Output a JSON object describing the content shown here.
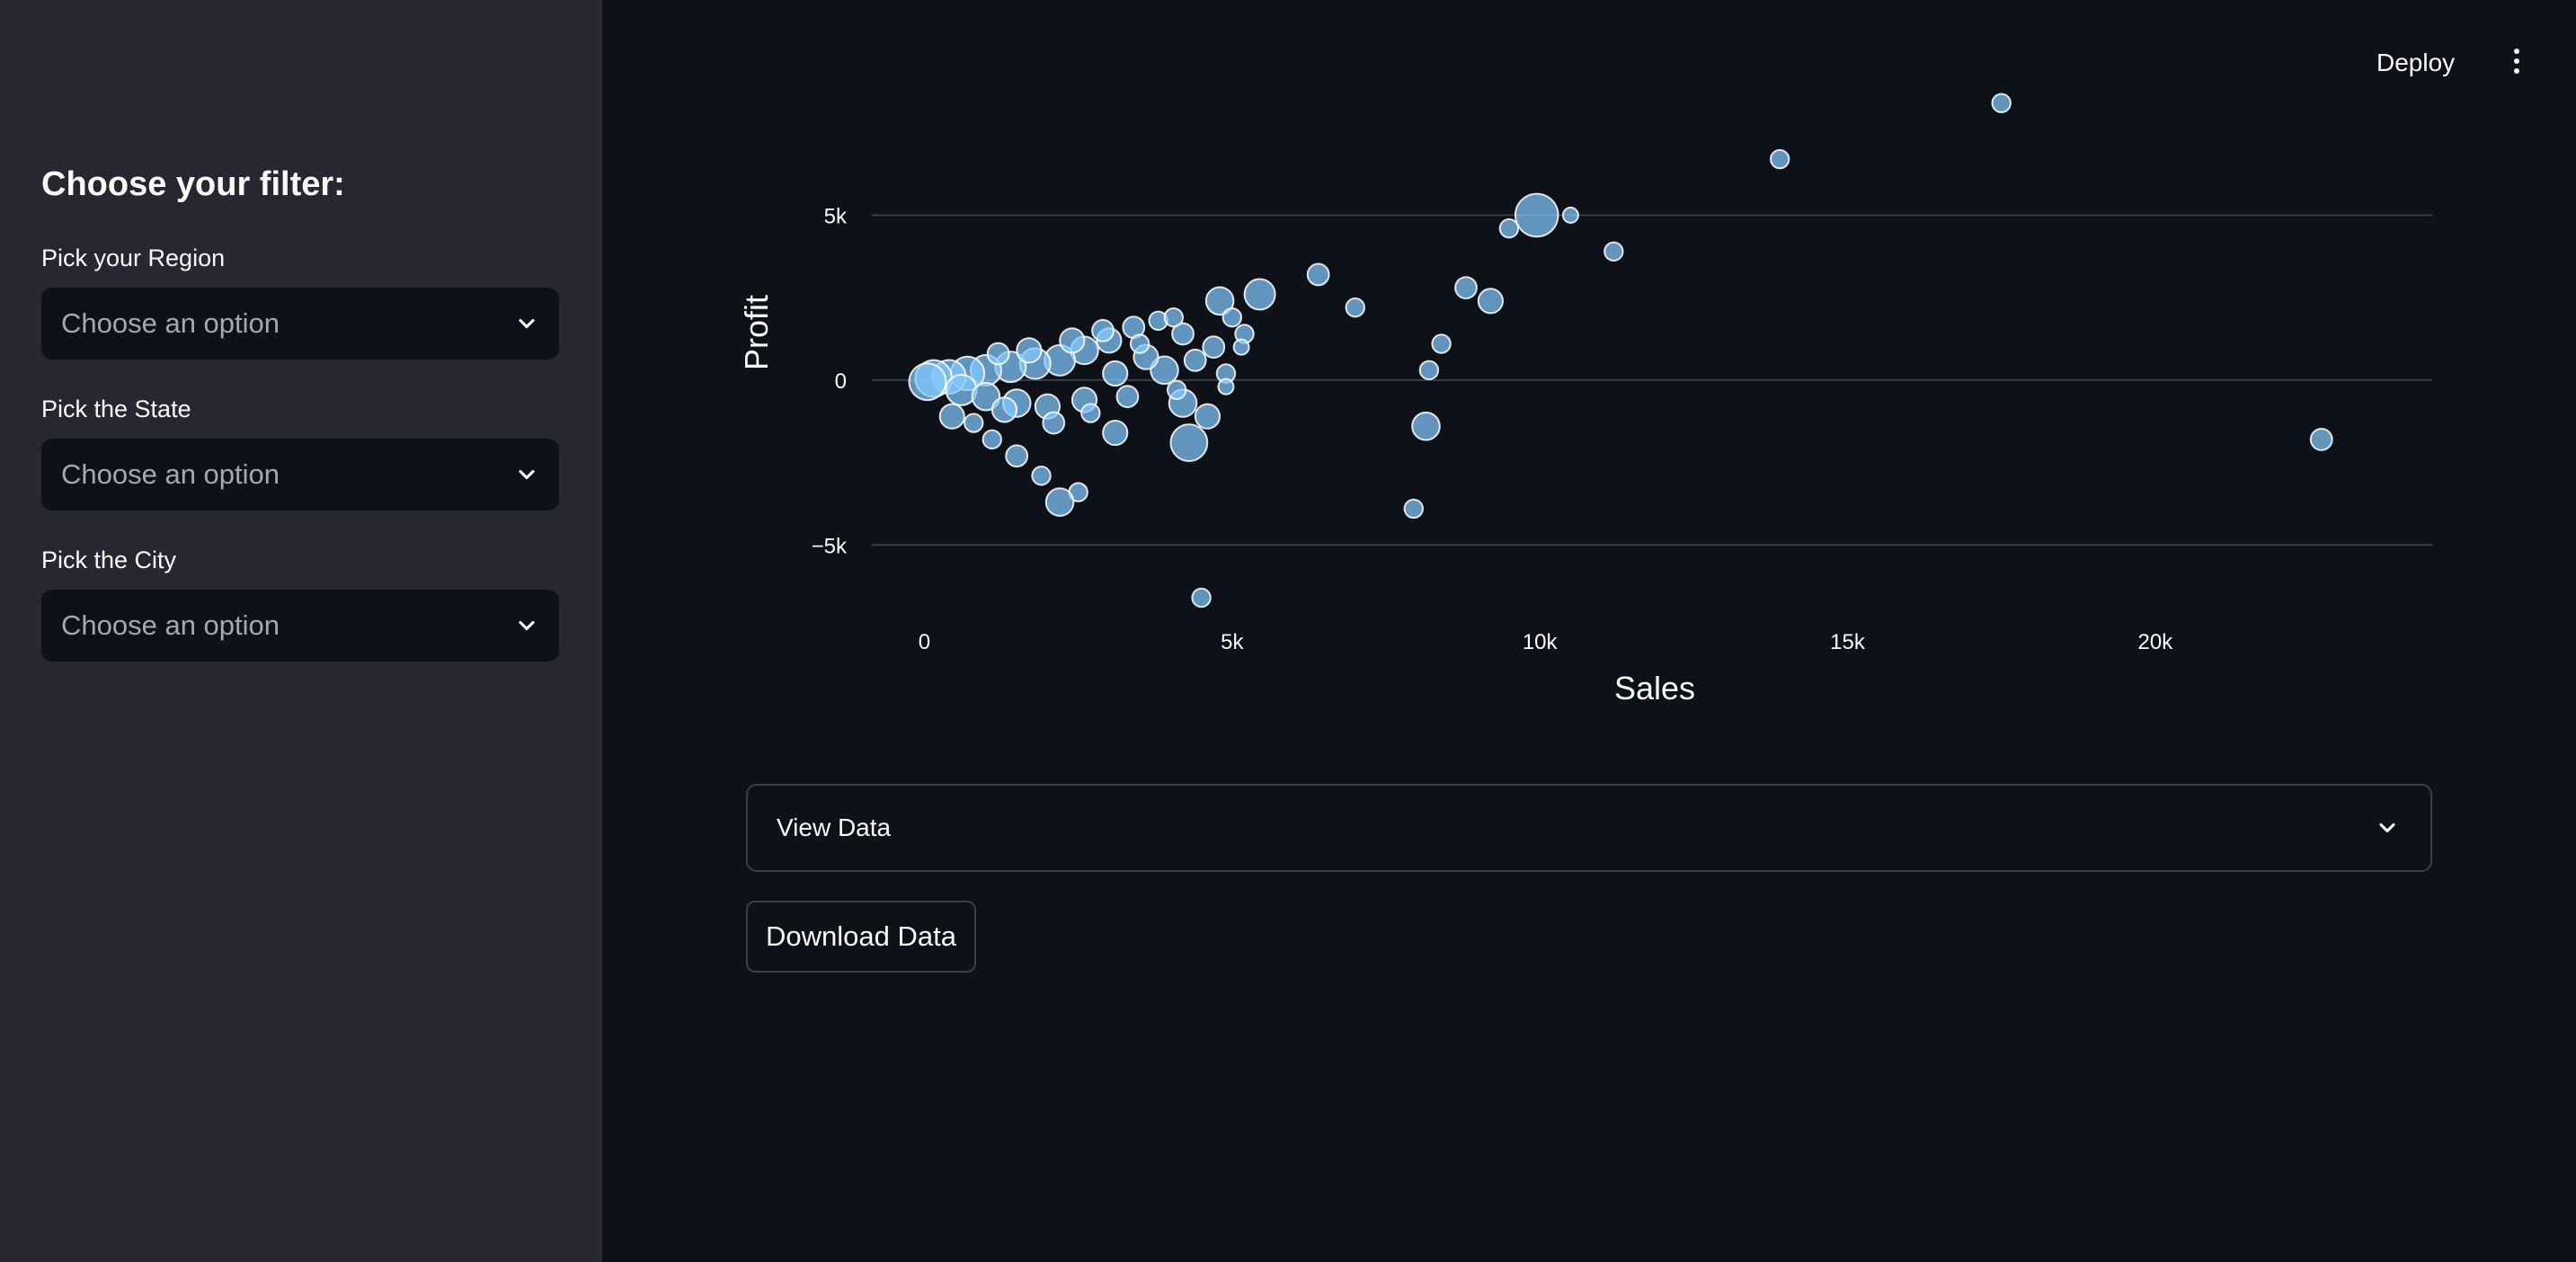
{
  "sidebar": {
    "title": "Choose your filter:",
    "filters": [
      {
        "label": "Pick your Region",
        "placeholder": "Choose an option"
      },
      {
        "label": "Pick the State",
        "placeholder": "Choose an option"
      },
      {
        "label": "Pick the City",
        "placeholder": "Choose an option"
      }
    ]
  },
  "header": {
    "deploy_label": "Deploy",
    "menu_icon": "kebab-menu-icon"
  },
  "chart_data": {
    "type": "scatter",
    "title": "",
    "xlabel": "Sales",
    "ylabel": "Profit",
    "xlim": [
      -1000,
      24500
    ],
    "ylim": [
      -7500,
      8800
    ],
    "x_ticks": [
      {
        "value": 0,
        "label": "0"
      },
      {
        "value": 5000,
        "label": "5k"
      },
      {
        "value": 10000,
        "label": "10k"
      },
      {
        "value": 15000,
        "label": "15k"
      },
      {
        "value": 20000,
        "label": "20k"
      }
    ],
    "y_ticks": [
      {
        "value": 5000,
        "label": "5k"
      },
      {
        "value": 0,
        "label": "0"
      },
      {
        "value": -5000,
        "label": "−5k"
      }
    ],
    "grid": "horizontal",
    "marker_color": "#83c9ff",
    "points": [
      {
        "x": 17500,
        "y": 8400,
        "size": 3
      },
      {
        "x": 13900,
        "y": 6700,
        "size": 3
      },
      {
        "x": 9950,
        "y": 5000,
        "size": 7
      },
      {
        "x": 10500,
        "y": 5000,
        "size": 2.5
      },
      {
        "x": 9500,
        "y": 4600,
        "size": 3
      },
      {
        "x": 11200,
        "y": 3900,
        "size": 3
      },
      {
        "x": 6400,
        "y": 3200,
        "size": 3.5
      },
      {
        "x": 8800,
        "y": 2800,
        "size": 3.5
      },
      {
        "x": 9200,
        "y": 2400,
        "size": 4
      },
      {
        "x": 7000,
        "y": 2200,
        "size": 3
      },
      {
        "x": 5450,
        "y": 2600,
        "size": 5
      },
      {
        "x": 4800,
        "y": 2400,
        "size": 4.5
      },
      {
        "x": 5000,
        "y": 1900,
        "size": 3
      },
      {
        "x": 5200,
        "y": 1400,
        "size": 3
      },
      {
        "x": 8400,
        "y": 1100,
        "size": 3
      },
      {
        "x": 8200,
        "y": 300,
        "size": 3
      },
      {
        "x": 8150,
        "y": -1400,
        "size": 4.5
      },
      {
        "x": 7950,
        "y": -3900,
        "size": 3
      },
      {
        "x": 22700,
        "y": -1800,
        "size": 3.5
      },
      {
        "x": 4500,
        "y": -6600,
        "size": 3
      },
      {
        "x": 4300,
        "y": -1900,
        "size": 6
      },
      {
        "x": 4600,
        "y": -1100,
        "size": 4
      },
      {
        "x": 4200,
        "y": -700,
        "size": 4.5
      },
      {
        "x": 3100,
        "y": -1600,
        "size": 4
      },
      {
        "x": 2500,
        "y": -3400,
        "size": 3
      },
      {
        "x": 2200,
        "y": -3700,
        "size": 4.5
      },
      {
        "x": 1900,
        "y": -2900,
        "size": 3
      },
      {
        "x": 1500,
        "y": -2300,
        "size": 3.5
      },
      {
        "x": 1100,
        "y": -1800,
        "size": 3
      },
      {
        "x": 800,
        "y": -1300,
        "size": 3
      },
      {
        "x": 450,
        "y": -1100,
        "size": 4
      },
      {
        "x": 4900,
        "y": 200,
        "size": 3
      },
      {
        "x": 4700,
        "y": 1000,
        "size": 3.5
      },
      {
        "x": 4200,
        "y": 1400,
        "size": 3.5
      },
      {
        "x": 3800,
        "y": 1800,
        "size": 3
      },
      {
        "x": 3400,
        "y": 1600,
        "size": 3.5
      },
      {
        "x": 3000,
        "y": 1200,
        "size": 4
      },
      {
        "x": 2600,
        "y": 900,
        "size": 4.5
      },
      {
        "x": 2200,
        "y": 600,
        "size": 5
      },
      {
        "x": 1800,
        "y": 500,
        "size": 5
      },
      {
        "x": 1400,
        "y": 400,
        "size": 5
      },
      {
        "x": 1000,
        "y": 300,
        "size": 5
      },
      {
        "x": 700,
        "y": 200,
        "size": 5.5
      },
      {
        "x": 400,
        "y": 100,
        "size": 5.5
      },
      {
        "x": 150,
        "y": 50,
        "size": 6
      },
      {
        "x": 50,
        "y": -50,
        "size": 6
      },
      {
        "x": 600,
        "y": -300,
        "size": 5
      },
      {
        "x": 1000,
        "y": -500,
        "size": 4.5
      },
      {
        "x": 1500,
        "y": -700,
        "size": 4.5
      },
      {
        "x": 2000,
        "y": -800,
        "size": 4
      },
      {
        "x": 2600,
        "y": -600,
        "size": 4
      },
      {
        "x": 3300,
        "y": -500,
        "size": 3.5
      },
      {
        "x": 3900,
        "y": 300,
        "size": 4.5
      },
      {
        "x": 3600,
        "y": 700,
        "size": 4
      },
      {
        "x": 2900,
        "y": 1500,
        "size": 3.5
      },
      {
        "x": 2400,
        "y": 1200,
        "size": 4
      },
      {
        "x": 1700,
        "y": 900,
        "size": 4
      },
      {
        "x": 1200,
        "y": 800,
        "size": 3.5
      },
      {
        "x": 4100,
        "y": -300,
        "size": 3
      },
      {
        "x": 4400,
        "y": 600,
        "size": 3.5
      },
      {
        "x": 3500,
        "y": 1100,
        "size": 3
      },
      {
        "x": 2100,
        "y": -1300,
        "size": 3.5
      },
      {
        "x": 1300,
        "y": -900,
        "size": 4
      },
      {
        "x": 2700,
        "y": -1000,
        "size": 3
      },
      {
        "x": 3100,
        "y": 200,
        "size": 4
      },
      {
        "x": 4050,
        "y": 1900,
        "size": 3
      },
      {
        "x": 5150,
        "y": 1000,
        "size": 2.5
      },
      {
        "x": 4900,
        "y": -200,
        "size": 2.5
      }
    ]
  },
  "expander": {
    "label": "View Data"
  },
  "download": {
    "label": "Download Data"
  }
}
